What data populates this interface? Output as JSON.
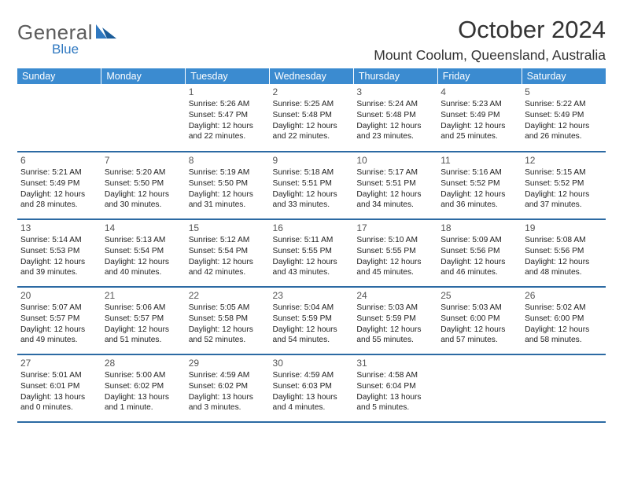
{
  "brand": {
    "name": "General",
    "sub": "Blue",
    "logo_color": "#2f78c0",
    "text_color": "#5c5c5c"
  },
  "title": "October 2024",
  "location": "Mount Coolum, Queensland, Australia",
  "theme": {
    "header_bg": "#3b8bd0",
    "header_fg": "#ffffff",
    "row_border": "#2c6aa3",
    "body_font_size": 10.2,
    "daynum_color": "#555555"
  },
  "weekdays": [
    "Sunday",
    "Monday",
    "Tuesday",
    "Wednesday",
    "Thursday",
    "Friday",
    "Saturday"
  ],
  "weeks": [
    [
      null,
      null,
      {
        "n": "1",
        "sr": "Sunrise: 5:26 AM",
        "ss": "Sunset: 5:47 PM",
        "d1": "Daylight: 12 hours",
        "d2": "and 22 minutes."
      },
      {
        "n": "2",
        "sr": "Sunrise: 5:25 AM",
        "ss": "Sunset: 5:48 PM",
        "d1": "Daylight: 12 hours",
        "d2": "and 22 minutes."
      },
      {
        "n": "3",
        "sr": "Sunrise: 5:24 AM",
        "ss": "Sunset: 5:48 PM",
        "d1": "Daylight: 12 hours",
        "d2": "and 23 minutes."
      },
      {
        "n": "4",
        "sr": "Sunrise: 5:23 AM",
        "ss": "Sunset: 5:49 PM",
        "d1": "Daylight: 12 hours",
        "d2": "and 25 minutes."
      },
      {
        "n": "5",
        "sr": "Sunrise: 5:22 AM",
        "ss": "Sunset: 5:49 PM",
        "d1": "Daylight: 12 hours",
        "d2": "and 26 minutes."
      }
    ],
    [
      {
        "n": "6",
        "sr": "Sunrise: 5:21 AM",
        "ss": "Sunset: 5:49 PM",
        "d1": "Daylight: 12 hours",
        "d2": "and 28 minutes."
      },
      {
        "n": "7",
        "sr": "Sunrise: 5:20 AM",
        "ss": "Sunset: 5:50 PM",
        "d1": "Daylight: 12 hours",
        "d2": "and 30 minutes."
      },
      {
        "n": "8",
        "sr": "Sunrise: 5:19 AM",
        "ss": "Sunset: 5:50 PM",
        "d1": "Daylight: 12 hours",
        "d2": "and 31 minutes."
      },
      {
        "n": "9",
        "sr": "Sunrise: 5:18 AM",
        "ss": "Sunset: 5:51 PM",
        "d1": "Daylight: 12 hours",
        "d2": "and 33 minutes."
      },
      {
        "n": "10",
        "sr": "Sunrise: 5:17 AM",
        "ss": "Sunset: 5:51 PM",
        "d1": "Daylight: 12 hours",
        "d2": "and 34 minutes."
      },
      {
        "n": "11",
        "sr": "Sunrise: 5:16 AM",
        "ss": "Sunset: 5:52 PM",
        "d1": "Daylight: 12 hours",
        "d2": "and 36 minutes."
      },
      {
        "n": "12",
        "sr": "Sunrise: 5:15 AM",
        "ss": "Sunset: 5:52 PM",
        "d1": "Daylight: 12 hours",
        "d2": "and 37 minutes."
      }
    ],
    [
      {
        "n": "13",
        "sr": "Sunrise: 5:14 AM",
        "ss": "Sunset: 5:53 PM",
        "d1": "Daylight: 12 hours",
        "d2": "and 39 minutes."
      },
      {
        "n": "14",
        "sr": "Sunrise: 5:13 AM",
        "ss": "Sunset: 5:54 PM",
        "d1": "Daylight: 12 hours",
        "d2": "and 40 minutes."
      },
      {
        "n": "15",
        "sr": "Sunrise: 5:12 AM",
        "ss": "Sunset: 5:54 PM",
        "d1": "Daylight: 12 hours",
        "d2": "and 42 minutes."
      },
      {
        "n": "16",
        "sr": "Sunrise: 5:11 AM",
        "ss": "Sunset: 5:55 PM",
        "d1": "Daylight: 12 hours",
        "d2": "and 43 minutes."
      },
      {
        "n": "17",
        "sr": "Sunrise: 5:10 AM",
        "ss": "Sunset: 5:55 PM",
        "d1": "Daylight: 12 hours",
        "d2": "and 45 minutes."
      },
      {
        "n": "18",
        "sr": "Sunrise: 5:09 AM",
        "ss": "Sunset: 5:56 PM",
        "d1": "Daylight: 12 hours",
        "d2": "and 46 minutes."
      },
      {
        "n": "19",
        "sr": "Sunrise: 5:08 AM",
        "ss": "Sunset: 5:56 PM",
        "d1": "Daylight: 12 hours",
        "d2": "and 48 minutes."
      }
    ],
    [
      {
        "n": "20",
        "sr": "Sunrise: 5:07 AM",
        "ss": "Sunset: 5:57 PM",
        "d1": "Daylight: 12 hours",
        "d2": "and 49 minutes."
      },
      {
        "n": "21",
        "sr": "Sunrise: 5:06 AM",
        "ss": "Sunset: 5:57 PM",
        "d1": "Daylight: 12 hours",
        "d2": "and 51 minutes."
      },
      {
        "n": "22",
        "sr": "Sunrise: 5:05 AM",
        "ss": "Sunset: 5:58 PM",
        "d1": "Daylight: 12 hours",
        "d2": "and 52 minutes."
      },
      {
        "n": "23",
        "sr": "Sunrise: 5:04 AM",
        "ss": "Sunset: 5:59 PM",
        "d1": "Daylight: 12 hours",
        "d2": "and 54 minutes."
      },
      {
        "n": "24",
        "sr": "Sunrise: 5:03 AM",
        "ss": "Sunset: 5:59 PM",
        "d1": "Daylight: 12 hours",
        "d2": "and 55 minutes."
      },
      {
        "n": "25",
        "sr": "Sunrise: 5:03 AM",
        "ss": "Sunset: 6:00 PM",
        "d1": "Daylight: 12 hours",
        "d2": "and 57 minutes."
      },
      {
        "n": "26",
        "sr": "Sunrise: 5:02 AM",
        "ss": "Sunset: 6:00 PM",
        "d1": "Daylight: 12 hours",
        "d2": "and 58 minutes."
      }
    ],
    [
      {
        "n": "27",
        "sr": "Sunrise: 5:01 AM",
        "ss": "Sunset: 6:01 PM",
        "d1": "Daylight: 13 hours",
        "d2": "and 0 minutes."
      },
      {
        "n": "28",
        "sr": "Sunrise: 5:00 AM",
        "ss": "Sunset: 6:02 PM",
        "d1": "Daylight: 13 hours",
        "d2": "and 1 minute."
      },
      {
        "n": "29",
        "sr": "Sunrise: 4:59 AM",
        "ss": "Sunset: 6:02 PM",
        "d1": "Daylight: 13 hours",
        "d2": "and 3 minutes."
      },
      {
        "n": "30",
        "sr": "Sunrise: 4:59 AM",
        "ss": "Sunset: 6:03 PM",
        "d1": "Daylight: 13 hours",
        "d2": "and 4 minutes."
      },
      {
        "n": "31",
        "sr": "Sunrise: 4:58 AM",
        "ss": "Sunset: 6:04 PM",
        "d1": "Daylight: 13 hours",
        "d2": "and 5 minutes."
      },
      null,
      null
    ]
  ]
}
